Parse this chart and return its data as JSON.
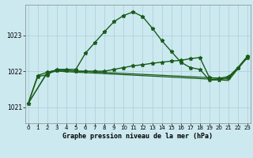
{
  "title": "Graphe pression niveau de la mer (hPa)",
  "background_color": "#cce9f0",
  "grid_color": "#aaccd8",
  "line_color": "#1a5c1a",
  "x_ticks": [
    0,
    1,
    2,
    3,
    4,
    5,
    6,
    7,
    8,
    9,
    10,
    11,
    12,
    13,
    14,
    15,
    16,
    17,
    18,
    19,
    20,
    21,
    22,
    23
  ],
  "y_ticks": [
    1021,
    1022,
    1023
  ],
  "ylim": [
    1020.55,
    1023.85
  ],
  "xlim": [
    -0.3,
    23.3
  ],
  "line1_x": [
    0,
    1,
    2,
    3,
    4,
    5,
    6,
    7,
    8,
    9,
    10,
    11,
    12,
    13,
    14,
    15,
    16,
    17,
    18,
    19,
    20,
    21,
    22,
    23
  ],
  "line1_y": [
    1021.1,
    1021.85,
    1021.9,
    1022.05,
    1022.05,
    1022.05,
    1022.5,
    1022.8,
    1023.1,
    1023.38,
    1023.55,
    1023.65,
    1023.52,
    1023.2,
    1022.85,
    1022.55,
    1022.25,
    1022.1,
    1022.05,
    1021.75,
    1021.76,
    1021.82,
    1022.1,
    1022.38
  ],
  "line2_x": [
    0,
    1,
    2,
    3,
    4,
    5,
    6,
    7,
    8,
    9,
    10,
    11,
    12,
    13,
    14,
    15,
    16,
    17,
    18,
    19,
    20,
    21,
    22,
    23
  ],
  "line2_y": [
    1021.1,
    1021.88,
    1021.97,
    1022.03,
    1022.03,
    1022.0,
    1022.0,
    1022.0,
    1022.0,
    1022.05,
    1022.1,
    1022.15,
    1022.18,
    1022.22,
    1022.25,
    1022.28,
    1022.3,
    1022.35,
    1022.38,
    1021.82,
    1021.8,
    1021.85,
    1022.1,
    1022.42
  ],
  "line3_x": [
    0,
    2,
    3,
    19,
    20,
    21,
    22,
    23
  ],
  "line3_y": [
    1021.1,
    1021.97,
    1022.03,
    1021.82,
    1021.8,
    1021.78,
    1022.1,
    1022.42
  ],
  "line4_x": [
    0,
    2,
    3,
    19,
    20,
    21,
    22,
    23
  ],
  "line4_y": [
    1021.1,
    1021.95,
    1022.0,
    1021.78,
    1021.76,
    1021.74,
    1022.07,
    1022.39
  ]
}
